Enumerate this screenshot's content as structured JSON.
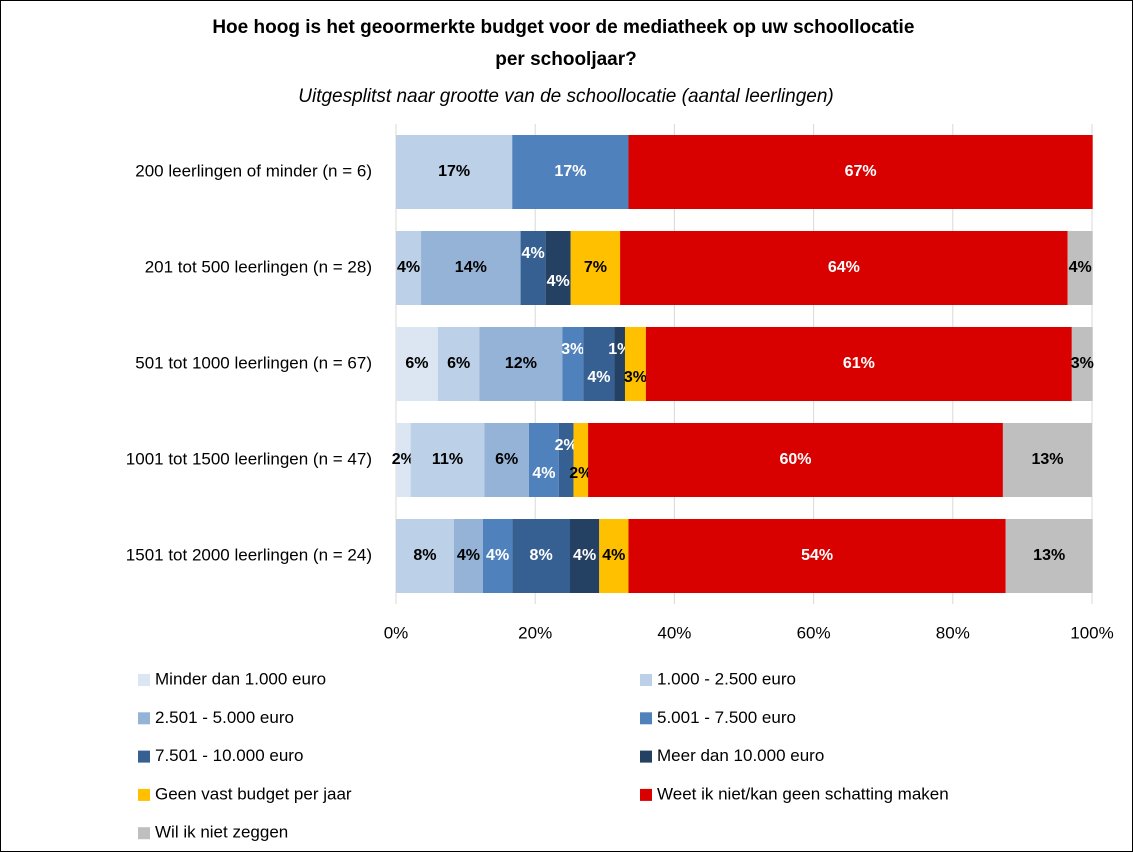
{
  "chart_data": {
    "type": "stacked_barh",
    "title": "Hoe hoog is het geoormerkte budget voor de mediatheek op uw schoollocatie per schooljaar?",
    "subtitle": "Uitgesplitst naar grootte van de schoollocatie (aantal leerlingen)",
    "categories": [
      "200 leerlingen of minder (n = 6)",
      "201 tot 500 leerlingen (n = 28)",
      "501 tot 1000 leerlingen (n = 67)",
      "1001 tot 1500 leerlingen (n = 47)",
      "1501 tot 2000 leerlingen (n = 24)"
    ],
    "xlim": [
      0,
      100
    ],
    "xticks": [
      {
        "value": 0,
        "label": "0%"
      },
      {
        "value": 20,
        "label": "20%"
      },
      {
        "value": 40,
        "label": "40%"
      },
      {
        "value": 60,
        "label": "60%"
      },
      {
        "value": 80,
        "label": "80%"
      },
      {
        "value": 100,
        "label": "100%"
      }
    ],
    "grid": true,
    "legend": "bottom",
    "series": [
      {
        "name": "Minder dan 1.000 euro",
        "color": "#dce6f2",
        "values": [
          0,
          0,
          6.0,
          2.1,
          0
        ],
        "value_labels": [
          null,
          null,
          "6%",
          "2%",
          null
        ]
      },
      {
        "name": "1.000 - 2.500 euro",
        "color": "#bcd0e8",
        "values": [
          16.7,
          3.6,
          6.0,
          10.6,
          8.3
        ],
        "value_labels": [
          "17%",
          "4%",
          "6%",
          "11%",
          "8%"
        ]
      },
      {
        "name": "2.501 - 5.000 euro",
        "color": "#95b3d7",
        "values": [
          0,
          14.3,
          11.9,
          6.4,
          4.2
        ],
        "value_labels": [
          null,
          "14%",
          "12%",
          "6%",
          "4%"
        ]
      },
      {
        "name": "5.001 - 7.500 euro",
        "color": "#4f81bd",
        "values": [
          16.7,
          0,
          3.0,
          4.3,
          4.2
        ],
        "value_labels": [
          "17%",
          null,
          "3%",
          "4%",
          "4%"
        ]
      },
      {
        "name": "7.501 - 10.000 euro",
        "color": "#366092",
        "values": [
          0,
          3.6,
          4.5,
          2.1,
          8.3
        ],
        "value_labels": [
          null,
          "4%",
          "4%",
          "2%",
          "8%"
        ]
      },
      {
        "name": "Meer dan 10.000 euro",
        "color": "#244062",
        "values": [
          0,
          3.6,
          1.5,
          0,
          4.2
        ],
        "value_labels": [
          null,
          "4%",
          "1%",
          null,
          "4%"
        ]
      },
      {
        "name": "Geen vast budget per jaar",
        "color": "#ffc000",
        "values": [
          0,
          7.1,
          3.0,
          2.1,
          4.2
        ],
        "value_labels": [
          null,
          "7%",
          "3%",
          "2%",
          "4%"
        ]
      },
      {
        "name": "Weet ik niet/kan geen schatting maken",
        "color": "#d90000",
        "values": [
          66.7,
          64.3,
          61.2,
          59.6,
          54.2
        ],
        "value_labels": [
          "67%",
          "64%",
          "61%",
          "60%",
          "54%"
        ]
      },
      {
        "name": "Wil ik niet zeggen",
        "color": "#bfbfbf",
        "values": [
          0,
          3.6,
          3.0,
          12.8,
          12.5
        ],
        "value_labels": [
          null,
          "4%",
          "3%",
          "13%",
          "13%"
        ]
      }
    ]
  }
}
